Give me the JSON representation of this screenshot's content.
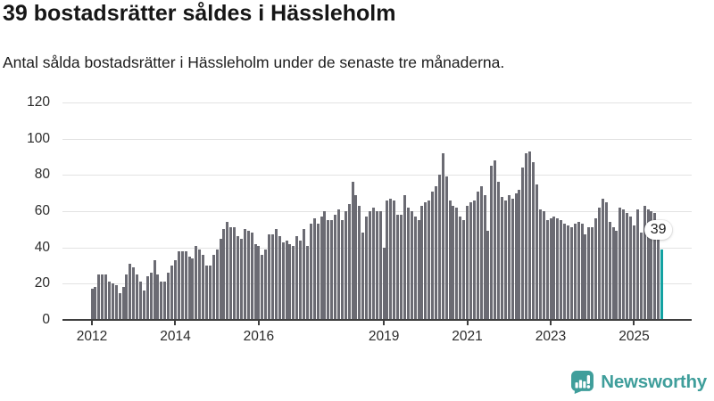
{
  "header": {
    "title": "39 bostadsrätter såldes i Hässleholm",
    "subtitle": "Antal sålda bostadsrätter i Hässleholm under de senaste tre månaderna."
  },
  "chart_data": {
    "type": "bar",
    "title": "39 bostadsrätter såldes i Hässleholm",
    "subtitle": "Antal sålda bostadsrätter i Hässleholm under de senaste tre månaderna.",
    "frequency": "monthly",
    "x_start": "2012-01",
    "x_end": "2025-09",
    "values": [
      17,
      18,
      25,
      25,
      25,
      21,
      20,
      19,
      15,
      18,
      25,
      31,
      29,
      25,
      21,
      16,
      24,
      26,
      33,
      25,
      21,
      21,
      26,
      30,
      33,
      38,
      38,
      38,
      35,
      34,
      41,
      39,
      36,
      30,
      30,
      36,
      39,
      45,
      50,
      54,
      51,
      51,
      46,
      45,
      50,
      49,
      48,
      42,
      41,
      36,
      39,
      47,
      47,
      50,
      46,
      43,
      44,
      42,
      41,
      46,
      44,
      50,
      41,
      53,
      56,
      53,
      57,
      60,
      55,
      55,
      58,
      61,
      55,
      60,
      64,
      76,
      69,
      63,
      48,
      57,
      60,
      62,
      60,
      60,
      40,
      66,
      67,
      66,
      58,
      58,
      69,
      62,
      60,
      57,
      55,
      63,
      65,
      66,
      71,
      74,
      80,
      92,
      79,
      66,
      63,
      62,
      57,
      55,
      63,
      65,
      66,
      71,
      74,
      69,
      49,
      85,
      88,
      76,
      68,
      66,
      69,
      67,
      70,
      72,
      84,
      92,
      93,
      87,
      75,
      61,
      60,
      55,
      56,
      57,
      56,
      55,
      53,
      52,
      51,
      53,
      54,
      53,
      47,
      51,
      51,
      56,
      62,
      67,
      65,
      54,
      51,
      49,
      62,
      61,
      59,
      57,
      52,
      61,
      48,
      63,
      61,
      60,
      59,
      55,
      39
    ],
    "highlight_last": true,
    "annotation": {
      "label": "39",
      "value": 39
    },
    "x_tick_labels": [
      "2012",
      "2014",
      "2016",
      "2019",
      "2021",
      "2023",
      "2025"
    ],
    "y_ticks": [
      0,
      20,
      40,
      60,
      80,
      100,
      120
    ],
    "ylim": [
      0,
      120
    ],
    "grid": "horizontal",
    "legend": "none",
    "colors": {
      "bar": "#6b6b73",
      "highlight": "#13a2a2",
      "gridline": "#e3e3e3",
      "axis": "#3f3f3f"
    }
  },
  "branding": {
    "name": "Newsworthy",
    "color": "#3f9e9b",
    "icon": "newsworthy-chart-bubble-icon"
  }
}
